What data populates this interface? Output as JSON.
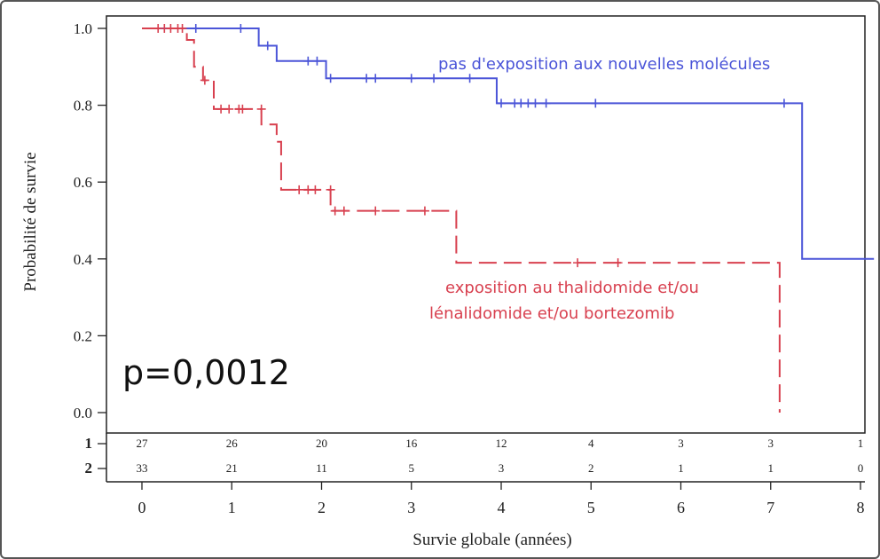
{
  "chart_data": {
    "type": "line",
    "title": "",
    "xlabel": "Survie globale (années)",
    "ylabel": "Probabilité de survie",
    "xlim": [
      0,
      8
    ],
    "ylim": [
      0,
      1
    ],
    "x_ticks": [
      "0",
      "1",
      "2",
      "3",
      "4",
      "5",
      "6",
      "7",
      "8"
    ],
    "y_ticks": [
      "0.0",
      "0.2",
      "0.4",
      "0.6",
      "0.8",
      "1.0"
    ],
    "grid": false,
    "annotation": "p=0,0012",
    "series": [
      {
        "name": "pas d'exposition aux nouvelles molécules",
        "color": "#4b55d8",
        "line_style": "solid",
        "steps": [
          [
            0,
            1.0
          ],
          [
            1.3,
            0.955
          ],
          [
            1.5,
            0.915
          ],
          [
            2.05,
            0.87
          ],
          [
            3.95,
            0.805
          ],
          [
            7.35,
            0.4
          ],
          [
            8.15,
            0.4
          ]
        ],
        "censored": [
          [
            0.6,
            1.0
          ],
          [
            1.1,
            1.0
          ],
          [
            1.4,
            0.955
          ],
          [
            1.85,
            0.915
          ],
          [
            1.95,
            0.915
          ],
          [
            2.1,
            0.87
          ],
          [
            2.5,
            0.87
          ],
          [
            2.6,
            0.87
          ],
          [
            3.0,
            0.87
          ],
          [
            3.25,
            0.87
          ],
          [
            3.65,
            0.87
          ],
          [
            4.0,
            0.805
          ],
          [
            4.15,
            0.805
          ],
          [
            4.22,
            0.805
          ],
          [
            4.3,
            0.805
          ],
          [
            4.38,
            0.805
          ],
          [
            4.5,
            0.805
          ],
          [
            5.05,
            0.805
          ],
          [
            7.15,
            0.805
          ]
        ]
      },
      {
        "name": "exposition au thalidomide et/ou lénalidomide et/ou bortezomib",
        "color": "#d8404f",
        "line_style": "dashed",
        "steps": [
          [
            0,
            1.0
          ],
          [
            0.5,
            0.97
          ],
          [
            0.58,
            0.9
          ],
          [
            0.68,
            0.865
          ],
          [
            0.8,
            0.79
          ],
          [
            1.33,
            0.75
          ],
          [
            1.5,
            0.705
          ],
          [
            1.55,
            0.58
          ],
          [
            2.1,
            0.525
          ],
          [
            3.5,
            0.39
          ],
          [
            7.1,
            0.0
          ]
        ],
        "censored": [
          [
            0.18,
            1.0
          ],
          [
            0.25,
            1.0
          ],
          [
            0.32,
            1.0
          ],
          [
            0.4,
            1.0
          ],
          [
            0.45,
            1.0
          ],
          [
            0.7,
            0.865
          ],
          [
            0.88,
            0.79
          ],
          [
            0.97,
            0.79
          ],
          [
            1.08,
            0.79
          ],
          [
            1.12,
            0.79
          ],
          [
            1.33,
            0.79
          ],
          [
            1.75,
            0.58
          ],
          [
            1.85,
            0.58
          ],
          [
            1.93,
            0.58
          ],
          [
            2.1,
            0.58
          ],
          [
            2.15,
            0.525
          ],
          [
            2.25,
            0.525
          ],
          [
            2.6,
            0.525
          ],
          [
            3.15,
            0.525
          ],
          [
            4.85,
            0.39
          ],
          [
            5.3,
            0.39
          ]
        ]
      }
    ],
    "risk_table": {
      "rows": [
        {
          "label": "1",
          "counts": [
            "27",
            "26",
            "20",
            "16",
            "12",
            "4",
            "3",
            "3",
            "1"
          ]
        },
        {
          "label": "2",
          "counts": [
            "33",
            "21",
            "11",
            "5",
            "3",
            "2",
            "1",
            "1",
            "0"
          ]
        }
      ]
    }
  }
}
